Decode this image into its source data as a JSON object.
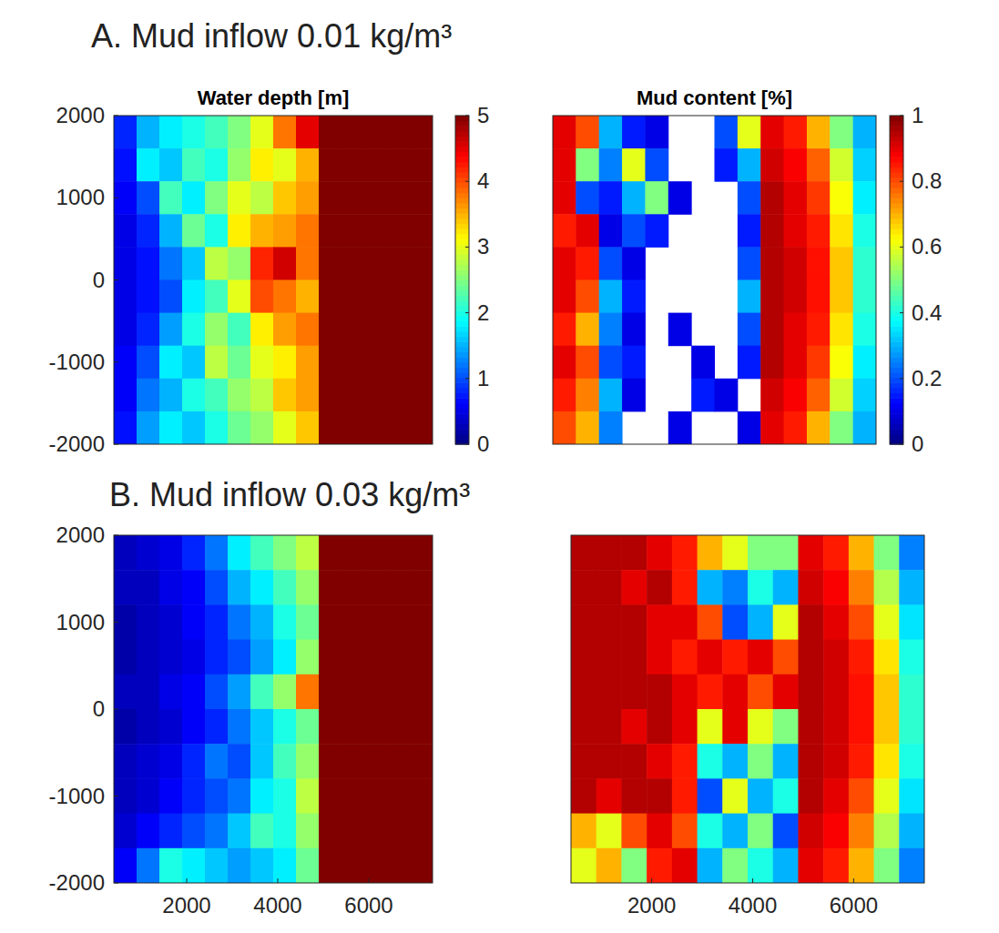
{
  "chart_data": [
    {
      "type": "heatmap",
      "panel_title": "A. Mud inflow 0.01 kg/m³",
      "title": "Water depth [m]",
      "xlim": [
        400,
        7400
      ],
      "ylim": [
        -2000,
        2000
      ],
      "yticks": [
        -2000,
        -1000,
        0,
        1000,
        2000
      ],
      "tick_labels": "y",
      "x": [
        650,
        1150,
        1650,
        2150,
        2650,
        3150,
        3650,
        4150,
        4650,
        5150,
        5650,
        6150,
        6650,
        7150
      ],
      "y": [
        1800,
        1400,
        1000,
        600,
        200,
        -200,
        -600,
        -1000,
        -1400,
        -1800
      ],
      "colorbar": {
        "range": [
          0,
          5
        ],
        "ticks": [
          0,
          1,
          2,
          3,
          4,
          5
        ]
      },
      "cells": [
        [
          0.8,
          1.5,
          1.8,
          2.0,
          2.2,
          2.5,
          3.0,
          3.8,
          4.5,
          5,
          5,
          5,
          5,
          5
        ],
        [
          0.7,
          1.8,
          1.6,
          2.2,
          2.0,
          2.6,
          3.2,
          3.0,
          3.5,
          5,
          5,
          5,
          5,
          5
        ],
        [
          0.6,
          1.0,
          2.2,
          1.8,
          2.5,
          3.0,
          2.8,
          3.4,
          3.6,
          5,
          5,
          5,
          5,
          5
        ],
        [
          0.5,
          0.8,
          1.5,
          2.4,
          2.0,
          3.2,
          3.5,
          3.6,
          3.8,
          5,
          5,
          5,
          5,
          5
        ],
        [
          0.5,
          0.7,
          1.2,
          1.6,
          2.8,
          2.6,
          4.2,
          4.6,
          3.8,
          5,
          5,
          5,
          5,
          5
        ],
        [
          0.5,
          0.7,
          1.0,
          1.8,
          2.2,
          3.0,
          4.0,
          3.8,
          3.5,
          5,
          5,
          5,
          5,
          5
        ],
        [
          0.5,
          0.8,
          1.4,
          2.0,
          2.6,
          2.2,
          3.2,
          3.6,
          3.8,
          5,
          5,
          5,
          5,
          5
        ],
        [
          0.6,
          1.0,
          1.8,
          1.6,
          2.8,
          2.4,
          3.0,
          3.2,
          3.6,
          5,
          5,
          5,
          5,
          5
        ],
        [
          0.6,
          1.2,
          1.5,
          2.0,
          2.2,
          2.6,
          2.8,
          3.4,
          3.6,
          5,
          5,
          5,
          5,
          5
        ],
        [
          0.7,
          1.4,
          1.8,
          1.6,
          2.0,
          2.4,
          2.6,
          3.0,
          3.4,
          5,
          5,
          5,
          5,
          5
        ]
      ]
    },
    {
      "type": "heatmap",
      "title": "Mud content [%]",
      "xlim": [
        400,
        7400
      ],
      "ylim": [
        -2000,
        2000
      ],
      "tick_labels": false,
      "x": [
        650,
        1150,
        1650,
        2150,
        2650,
        3150,
        3650,
        4150,
        4650,
        5150,
        5650,
        6150,
        6650,
        7150
      ],
      "y": [
        1800,
        1400,
        1000,
        600,
        200,
        -200,
        -600,
        -1000,
        -1400,
        -1800
      ],
      "colorbar": {
        "range": [
          0,
          1
        ],
        "ticks": [
          0,
          0.2,
          0.4,
          0.6,
          0.8,
          1
        ]
      },
      "cells": [
        [
          0.9,
          0.8,
          0.3,
          0.15,
          0.1,
          null,
          null,
          0.2,
          0.6,
          0.9,
          0.85,
          0.7,
          0.5,
          0.3
        ],
        [
          0.9,
          0.5,
          0.25,
          0.6,
          0.2,
          null,
          null,
          0.15,
          0.3,
          0.92,
          0.88,
          0.78,
          0.58,
          0.33
        ],
        [
          0.9,
          0.2,
          0.15,
          0.3,
          0.5,
          0.1,
          null,
          null,
          0.2,
          0.95,
          0.9,
          0.82,
          0.62,
          0.36
        ],
        [
          0.85,
          0.9,
          0.1,
          0.2,
          0.15,
          null,
          null,
          null,
          0.15,
          0.95,
          0.9,
          0.85,
          0.65,
          0.4
        ],
        [
          0.9,
          0.85,
          0.2,
          0.1,
          null,
          null,
          null,
          null,
          0.2,
          0.95,
          0.92,
          0.86,
          0.68,
          0.42
        ],
        [
          0.9,
          0.8,
          0.3,
          0.15,
          null,
          null,
          null,
          null,
          0.3,
          0.95,
          0.92,
          0.86,
          0.68,
          0.42
        ],
        [
          0.85,
          0.7,
          0.25,
          0.1,
          null,
          0.1,
          null,
          null,
          0.2,
          0.95,
          0.9,
          0.85,
          0.65,
          0.4
        ],
        [
          0.9,
          0.8,
          0.2,
          0.15,
          null,
          null,
          0.1,
          null,
          0.15,
          0.95,
          0.9,
          0.82,
          0.62,
          0.36
        ],
        [
          0.85,
          0.75,
          0.3,
          0.1,
          null,
          null,
          0.15,
          0.1,
          null,
          0.92,
          0.88,
          0.78,
          0.58,
          0.33
        ],
        [
          0.8,
          0.7,
          0.25,
          null,
          null,
          0.1,
          null,
          null,
          0.1,
          0.9,
          0.85,
          0.7,
          0.5,
          0.3
        ]
      ]
    },
    {
      "type": "heatmap",
      "panel_title": "B. Mud inflow 0.03 kg/m³",
      "xlim": [
        400,
        7400
      ],
      "ylim": [
        -2000,
        2000
      ],
      "xticks": [
        2000,
        4000,
        6000
      ],
      "yticks": [
        -2000,
        -1000,
        0,
        1000,
        2000
      ],
      "tick_labels": true,
      "x": [
        650,
        1150,
        1650,
        2150,
        2650,
        3150,
        3650,
        4150,
        4650,
        5150,
        5650,
        6150,
        6650,
        7150
      ],
      "y": [
        1800,
        1400,
        1000,
        600,
        200,
        -200,
        -600,
        -1000,
        -1400,
        -1800
      ],
      "colorbar": {
        "range": [
          0,
          5
        ]
      },
      "cells": [
        [
          0.3,
          0.4,
          0.5,
          0.8,
          1.2,
          1.8,
          2.2,
          2.5,
          2.8,
          5,
          5,
          5,
          5,
          5
        ],
        [
          0.3,
          0.3,
          0.5,
          0.6,
          1.0,
          1.5,
          1.8,
          2.2,
          2.6,
          5,
          5,
          5,
          5,
          5
        ],
        [
          0.2,
          0.3,
          0.4,
          0.6,
          0.8,
          1.2,
          1.5,
          2.0,
          2.4,
          5,
          5,
          5,
          5,
          5
        ],
        [
          0.2,
          0.3,
          0.4,
          0.5,
          0.8,
          1.0,
          1.4,
          1.8,
          2.6,
          5,
          5,
          5,
          5,
          5
        ],
        [
          0.3,
          0.3,
          0.5,
          0.6,
          1.0,
          1.4,
          2.2,
          2.6,
          3.8,
          5,
          5,
          5,
          5,
          5
        ],
        [
          0.2,
          0.3,
          0.4,
          0.6,
          0.8,
          1.2,
          1.6,
          2.0,
          2.4,
          5,
          5,
          5,
          5,
          5
        ],
        [
          0.3,
          0.4,
          0.5,
          0.8,
          1.2,
          1.0,
          1.6,
          2.2,
          2.6,
          5,
          5,
          5,
          5,
          5
        ],
        [
          0.3,
          0.4,
          0.6,
          0.8,
          1.0,
          1.2,
          1.8,
          2.0,
          2.8,
          5,
          5,
          5,
          5,
          5
        ],
        [
          0.4,
          0.6,
          0.8,
          1.0,
          1.2,
          1.6,
          2.2,
          2.0,
          2.6,
          5,
          5,
          5,
          5,
          5
        ],
        [
          0.6,
          1.2,
          2.0,
          1.8,
          1.6,
          1.4,
          1.6,
          1.8,
          2.4,
          5,
          5,
          5,
          5,
          5
        ]
      ]
    },
    {
      "type": "heatmap",
      "xlim": [
        400,
        7400
      ],
      "ylim": [
        -2000,
        2000
      ],
      "xticks": [
        2000,
        4000,
        6000
      ],
      "tick_labels": "x",
      "x": [
        650,
        1150,
        1650,
        2150,
        2650,
        3150,
        3650,
        4150,
        4650,
        5150,
        5650,
        6150,
        6650,
        7150
      ],
      "y": [
        1800,
        1400,
        1000,
        600,
        200,
        -200,
        -600,
        -1000,
        -1400,
        -1800
      ],
      "colorbar": {
        "range": [
          0,
          1
        ]
      },
      "cells": [
        [
          0.95,
          0.95,
          0.95,
          0.9,
          0.85,
          0.7,
          0.6,
          0.5,
          0.5,
          0.9,
          0.85,
          0.7,
          0.5,
          0.25
        ],
        [
          0.95,
          0.95,
          0.9,
          0.95,
          0.85,
          0.3,
          0.25,
          0.4,
          0.3,
          0.92,
          0.88,
          0.75,
          0.55,
          0.3
        ],
        [
          0.95,
          0.95,
          0.95,
          0.9,
          0.9,
          0.8,
          0.2,
          0.3,
          0.6,
          0.95,
          0.9,
          0.8,
          0.6,
          0.35
        ],
        [
          0.95,
          0.95,
          0.95,
          0.9,
          0.85,
          0.9,
          0.85,
          0.9,
          0.8,
          0.95,
          0.92,
          0.85,
          0.65,
          0.4
        ],
        [
          0.95,
          0.95,
          0.95,
          0.95,
          0.9,
          0.85,
          0.9,
          0.8,
          0.9,
          0.95,
          0.92,
          0.86,
          0.68,
          0.42
        ],
        [
          0.95,
          0.95,
          0.9,
          0.95,
          0.9,
          0.6,
          0.9,
          0.6,
          0.5,
          0.95,
          0.92,
          0.86,
          0.68,
          0.42
        ],
        [
          0.95,
          0.95,
          0.95,
          0.9,
          0.85,
          0.4,
          0.3,
          0.5,
          0.3,
          0.95,
          0.92,
          0.85,
          0.65,
          0.4
        ],
        [
          0.95,
          0.9,
          0.95,
          0.95,
          0.85,
          0.2,
          0.6,
          0.3,
          0.4,
          0.95,
          0.9,
          0.8,
          0.6,
          0.35
        ],
        [
          0.7,
          0.6,
          0.8,
          0.9,
          0.8,
          0.4,
          0.3,
          0.5,
          0.2,
          0.92,
          0.88,
          0.75,
          0.55,
          0.3
        ],
        [
          0.6,
          0.7,
          0.5,
          0.85,
          0.9,
          0.3,
          0.5,
          0.4,
          0.3,
          0.9,
          0.85,
          0.7,
          0.5,
          0.25
        ]
      ]
    }
  ]
}
